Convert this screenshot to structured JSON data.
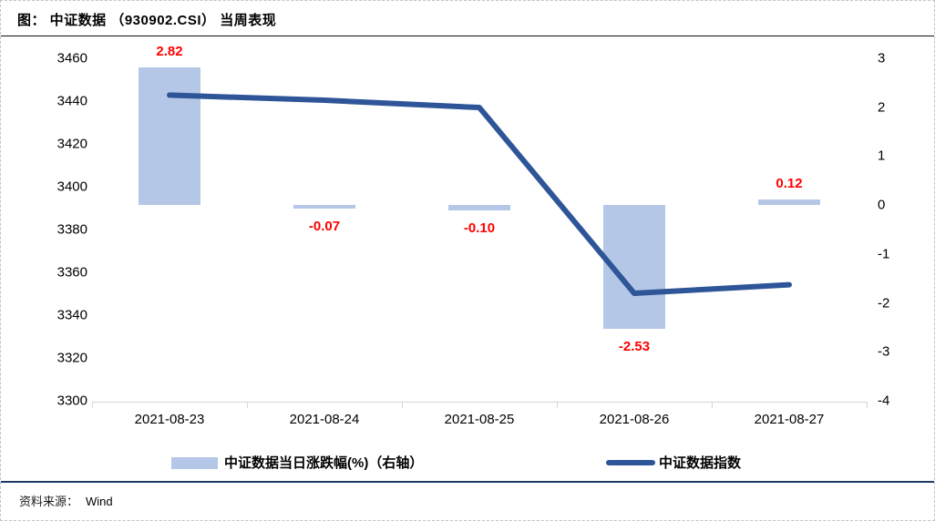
{
  "title": "图： 中证数据 （930902.CSI） 当周表现",
  "source": {
    "label": "资料来源：",
    "value": "Wind"
  },
  "colors": {
    "bar_fill": "#b4c7e7",
    "line_stroke": "#2e5597",
    "data_label": "#ff0000",
    "axis_line": "#d6d6d6",
    "bottom_rule": "#1f3864"
  },
  "legend": {
    "bar_label": "中证数据当日涨跌幅(%)（右轴）",
    "line_label": "中证数据指数"
  },
  "chart_data": {
    "type": "bar+line combo",
    "categories": [
      "2021-08-23",
      "2021-08-24",
      "2021-08-25",
      "2021-08-26",
      "2021-08-27"
    ],
    "series": [
      {
        "name": "中证数据当日涨跌幅(%)（右轴）",
        "type": "bar",
        "axis": "right",
        "values": [
          2.82,
          -0.07,
          -0.1,
          -2.53,
          0.12
        ],
        "value_labels": [
          "2.82",
          "-0.07",
          "-0.10",
          "-2.53",
          "0.12"
        ]
      },
      {
        "name": "中证数据指数",
        "type": "line",
        "axis": "left",
        "values": [
          3442.8,
          3440.4,
          3437.0,
          3350.2,
          3354.2
        ]
      }
    ],
    "left_axis": {
      "min": 3300,
      "max": 3460,
      "step": 20,
      "ticks": [
        "3460",
        "3440",
        "3420",
        "3400",
        "3380",
        "3360",
        "3340",
        "3320",
        "3300"
      ]
    },
    "right_axis": {
      "min": -4,
      "max": 3,
      "step": 1,
      "ticks": [
        "3",
        "2",
        "1",
        "0",
        "-1",
        "-2",
        "-3",
        "-4"
      ]
    },
    "grid": "off",
    "legend_position": "bottom"
  }
}
